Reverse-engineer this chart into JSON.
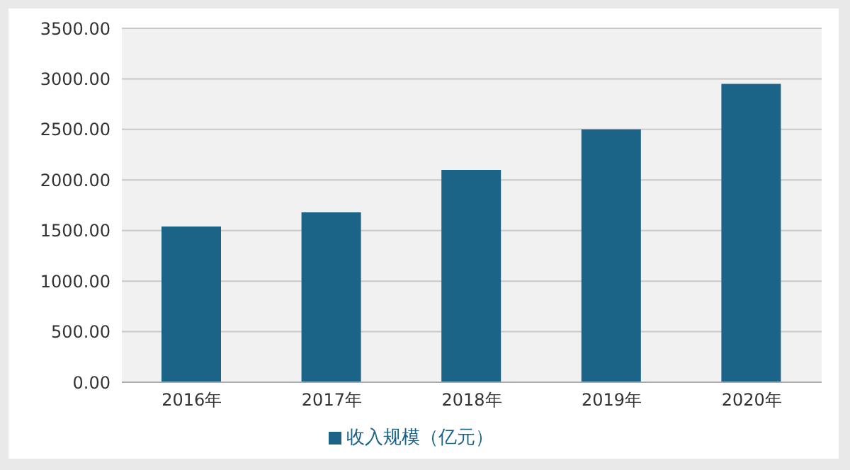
{
  "chart_data": {
    "type": "bar",
    "categories": [
      "2016年",
      "2017年",
      "2018年",
      "2019年",
      "2020年"
    ],
    "series": [
      {
        "name": "收入规模（亿元）",
        "color": "#1b6387",
        "values": [
          1540,
          1680,
          2100,
          2500,
          2950
        ]
      }
    ],
    "ylim": [
      0,
      3500
    ],
    "yticks": [
      {
        "value": 0,
        "label": "0.00"
      },
      {
        "value": 500,
        "label": "500.00"
      },
      {
        "value": 1000,
        "label": "1000.00"
      },
      {
        "value": 1500,
        "label": "1500.00"
      },
      {
        "value": 2000,
        "label": "2000.00"
      },
      {
        "value": 2500,
        "label": "2500.00"
      },
      {
        "value": 3000,
        "label": "3000.00"
      },
      {
        "value": 3500,
        "label": "3500.00"
      }
    ],
    "grid": "y",
    "legend": "bottom"
  }
}
